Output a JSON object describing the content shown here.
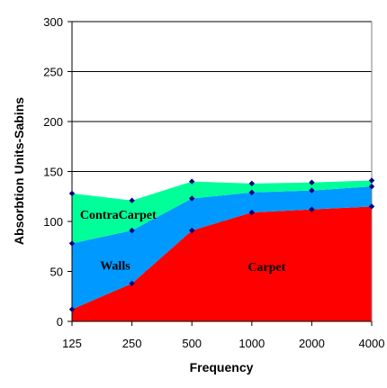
{
  "chart_data": {
    "type": "area",
    "stacked": true,
    "title": "",
    "xlabel": "Frequency",
    "ylabel": "Absorbtion Units-Sabins",
    "categories": [
      "125",
      "250",
      "500",
      "1000",
      "2000",
      "4000"
    ],
    "ylim": [
      0,
      300
    ],
    "yticks": [
      "0",
      "50",
      "100",
      "150",
      "200",
      "250",
      "300"
    ],
    "grid": true,
    "legend": "none",
    "series": [
      {
        "name": "Carpet",
        "values": [
          12,
          38,
          91,
          109,
          112,
          115
        ],
        "color": "#ff0000"
      },
      {
        "name": "Walls",
        "values": [
          66,
          53,
          32,
          20,
          19,
          20
        ],
        "color": "#0099ff"
      },
      {
        "name": "ContraCarpet",
        "values": [
          50,
          30,
          17,
          9,
          8,
          6
        ],
        "color": "#00ff99"
      }
    ],
    "marker_color": "#000080",
    "gridline_color": "#000000",
    "background": "#ffffff"
  }
}
